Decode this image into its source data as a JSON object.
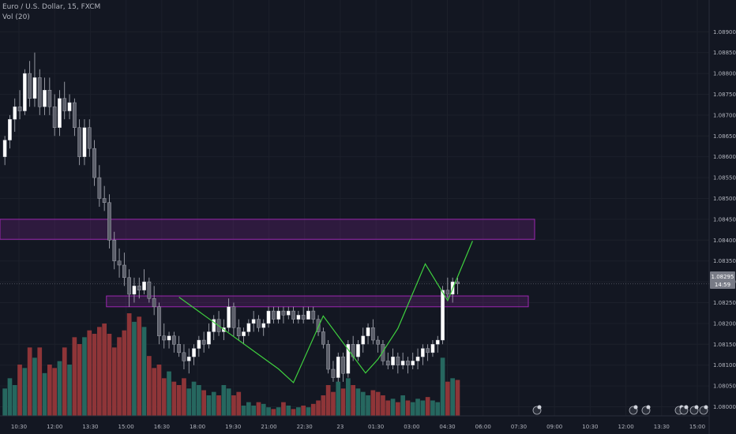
{
  "header": {
    "symbol": "Euro / U.S. Dollar, 15, FXCM",
    "indicator": "Vol (20)"
  },
  "price_label": {
    "price": "1.08295",
    "countdown": "14:59"
  },
  "colors": {
    "background": "#131722",
    "grid": "#1c202b",
    "candle_up": "#ffffff",
    "candle_down": "#5d606b",
    "wick": "#b2b5be",
    "volume_up": "#26675f",
    "volume_down": "#8e3538",
    "zone": "#9c27b0",
    "zigzag": "#3fd13f",
    "axis_text": "#b2b5be",
    "price_tag": "#787b86"
  },
  "chart_data": {
    "type": "candlestick",
    "title": "Euro / U.S. Dollar, 15, FXCM",
    "ylim": [
      1.07965,
      1.08963
    ],
    "y_ticks": [
      "1.08900",
      "1.08850",
      "1.08800",
      "1.08750",
      "1.08700",
      "1.08650",
      "1.08600",
      "1.08550",
      "1.08500",
      "1.08450",
      "1.08400",
      "1.08350",
      "1.08300",
      "1.08250",
      "1.08200",
      "1.08150",
      "1.08100",
      "1.08050",
      "1.08000"
    ],
    "x_ticks": [
      "10:30",
      "12:00",
      "13:30",
      "15:00",
      "16:30",
      "18:00",
      "19:30",
      "21:00",
      "22:30",
      "23",
      "01:30",
      "03:00",
      "04:30",
      "06:00",
      "07:30",
      "09:00",
      "10:30",
      "12:00",
      "13:30",
      "15:00"
    ],
    "candles": [
      [
        1.086,
        1.0865,
        1.0858,
        1.0864
      ],
      [
        1.0864,
        1.087,
        1.0862,
        1.0869
      ],
      [
        1.0869,
        1.0874,
        1.0866,
        1.0872
      ],
      [
        1.0872,
        1.0876,
        1.0869,
        1.0871
      ],
      [
        1.0871,
        1.0881,
        1.087,
        1.088
      ],
      [
        1.088,
        1.0883,
        1.0872,
        1.0874
      ],
      [
        1.0874,
        1.0885,
        1.0872,
        1.0879
      ],
      [
        1.0879,
        1.0881,
        1.087,
        1.0872
      ],
      [
        1.0872,
        1.0879,
        1.087,
        1.0876
      ],
      [
        1.0876,
        1.0879,
        1.087,
        1.0872
      ],
      [
        1.0872,
        1.0875,
        1.0865,
        1.0867
      ],
      [
        1.0867,
        1.0876,
        1.0865,
        1.0874
      ],
      [
        1.0874,
        1.0878,
        1.0869,
        1.0871
      ],
      [
        1.0871,
        1.0875,
        1.0869,
        1.0873
      ],
      [
        1.0873,
        1.0874,
        1.0865,
        1.0867
      ],
      [
        1.0867,
        1.0869,
        1.0858,
        1.086
      ],
      [
        1.086,
        1.0869,
        1.0858,
        1.0867
      ],
      [
        1.0867,
        1.0869,
        1.086,
        1.0862
      ],
      [
        1.0862,
        1.0864,
        1.0853,
        1.0855
      ],
      [
        1.0855,
        1.0858,
        1.0848,
        1.085
      ],
      [
        1.085,
        1.0853,
        1.0847,
        1.0849
      ],
      [
        1.0849,
        1.0851,
        1.0838,
        1.084
      ],
      [
        1.084,
        1.0842,
        1.0833,
        1.0835
      ],
      [
        1.0835,
        1.0838,
        1.0831,
        1.0834
      ],
      [
        1.0834,
        1.0837,
        1.0829,
        1.0831
      ],
      [
        1.0831,
        1.0833,
        1.0824,
        1.0827
      ],
      [
        1.0827,
        1.0831,
        1.0825,
        1.0829
      ],
      [
        1.0829,
        1.0831,
        1.0826,
        1.0828
      ],
      [
        1.0828,
        1.0833,
        1.0827,
        1.083
      ],
      [
        1.083,
        1.0831,
        1.0825,
        1.0826
      ],
      [
        1.0826,
        1.0829,
        1.0822,
        1.0824
      ],
      [
        1.0824,
        1.0825,
        1.0815,
        1.0817
      ],
      [
        1.0817,
        1.082,
        1.0814,
        1.0816
      ],
      [
        1.0816,
        1.0818,
        1.0814,
        1.0817
      ],
      [
        1.0817,
        1.0818,
        1.0813,
        1.0815
      ],
      [
        1.0815,
        1.0817,
        1.0812,
        1.0813
      ],
      [
        1.0813,
        1.0815,
        1.0809,
        1.0811
      ],
      [
        1.0811,
        1.0814,
        1.0808,
        1.0812
      ],
      [
        1.0812,
        1.0815,
        1.081,
        1.0814
      ],
      [
        1.0814,
        1.0817,
        1.0812,
        1.0816
      ],
      [
        1.0816,
        1.0818,
        1.0813,
        1.0815
      ],
      [
        1.0815,
        1.082,
        1.0814,
        1.0818
      ],
      [
        1.0818,
        1.0822,
        1.0816,
        1.0821
      ],
      [
        1.0821,
        1.0823,
        1.0817,
        1.0818
      ],
      [
        1.0818,
        1.0821,
        1.0816,
        1.0819
      ],
      [
        1.0819,
        1.0826,
        1.0818,
        1.0824
      ],
      [
        1.0824,
        1.0825,
        1.0817,
        1.0819
      ],
      [
        1.0819,
        1.0821,
        1.0816,
        1.0817
      ],
      [
        1.0817,
        1.0819,
        1.0815,
        1.0818
      ],
      [
        1.0818,
        1.0821,
        1.0817,
        1.082
      ],
      [
        1.082,
        1.0823,
        1.0818,
        1.0821
      ],
      [
        1.0821,
        1.0822,
        1.0818,
        1.0819
      ],
      [
        1.0819,
        1.0821,
        1.0817,
        1.082
      ],
      [
        1.082,
        1.0824,
        1.0819,
        1.0823
      ],
      [
        1.0823,
        1.0824,
        1.082,
        1.0821
      ],
      [
        1.0821,
        1.0824,
        1.082,
        1.0823
      ],
      [
        1.0823,
        1.0824,
        1.082,
        1.0822
      ],
      [
        1.0822,
        1.0824,
        1.0821,
        1.0823
      ],
      [
        1.0823,
        1.0824,
        1.082,
        1.0821
      ],
      [
        1.0821,
        1.0823,
        1.082,
        1.0822
      ],
      [
        1.0822,
        1.0824,
        1.082,
        1.0821
      ],
      [
        1.0821,
        1.0824,
        1.0821,
        1.0823
      ],
      [
        1.0823,
        1.0824,
        1.082,
        1.0821
      ],
      [
        1.0821,
        1.0822,
        1.0817,
        1.0818
      ],
      [
        1.0818,
        1.0819,
        1.0814,
        1.0815
      ],
      [
        1.0815,
        1.0816,
        1.0808,
        1.0809
      ],
      [
        1.0809,
        1.0811,
        1.0806,
        1.0807
      ],
      [
        1.0807,
        1.0813,
        1.0806,
        1.0812
      ],
      [
        1.0812,
        1.0813,
        1.0806,
        1.0808
      ],
      [
        1.0808,
        1.0816,
        1.0807,
        1.0815
      ],
      [
        1.0815,
        1.0817,
        1.0811,
        1.0812
      ],
      [
        1.0812,
        1.0816,
        1.0811,
        1.0815
      ],
      [
        1.0815,
        1.0819,
        1.0813,
        1.0817
      ],
      [
        1.0817,
        1.082,
        1.0815,
        1.0819
      ],
      [
        1.0819,
        1.0821,
        1.0815,
        1.0816
      ],
      [
        1.0816,
        1.0817,
        1.0813,
        1.0815
      ],
      [
        1.0815,
        1.0816,
        1.081,
        1.0811
      ],
      [
        1.0811,
        1.0813,
        1.0809,
        1.081
      ],
      [
        1.081,
        1.0814,
        1.0809,
        1.0812
      ],
      [
        1.0812,
        1.0813,
        1.0808,
        1.081
      ],
      [
        1.081,
        1.0813,
        1.0809,
        1.0811
      ],
      [
        1.0811,
        1.0812,
        1.0808,
        1.081
      ],
      [
        1.081,
        1.0813,
        1.0809,
        1.0811
      ],
      [
        1.0811,
        1.0814,
        1.0809,
        1.0812
      ],
      [
        1.0812,
        1.0815,
        1.081,
        1.0814
      ],
      [
        1.0814,
        1.0815,
        1.0811,
        1.0813
      ],
      [
        1.0813,
        1.0816,
        1.0812,
        1.0815
      ],
      [
        1.0815,
        1.0817,
        1.0813,
        1.0816
      ],
      [
        1.0816,
        1.0829,
        1.0815,
        1.0828
      ],
      [
        1.0828,
        1.0831,
        1.0826,
        1.0827
      ],
      [
        1.0827,
        1.0831,
        1.0825,
        1.083
      ],
      [
        1.083,
        1.0831,
        1.0827,
        1.08295
      ]
    ],
    "volumes": [
      0.16,
      0.22,
      0.18,
      0.3,
      0.28,
      0.4,
      0.34,
      0.4,
      0.25,
      0.3,
      0.28,
      0.32,
      0.4,
      0.3,
      0.46,
      0.42,
      0.46,
      0.5,
      0.48,
      0.52,
      0.54,
      0.48,
      0.4,
      0.46,
      0.5,
      0.6,
      0.55,
      0.58,
      0.52,
      0.35,
      0.28,
      0.3,
      0.22,
      0.26,
      0.2,
      0.18,
      0.22,
      0.16,
      0.2,
      0.18,
      0.15,
      0.12,
      0.14,
      0.12,
      0.18,
      0.16,
      0.12,
      0.14,
      0.06,
      0.08,
      0.06,
      0.08,
      0.07,
      0.05,
      0.04,
      0.05,
      0.08,
      0.06,
      0.04,
      0.05,
      0.06,
      0.05,
      0.07,
      0.09,
      0.12,
      0.18,
      0.14,
      0.2,
      0.16,
      0.22,
      0.18,
      0.16,
      0.14,
      0.12,
      0.15,
      0.14,
      0.12,
      0.09,
      0.1,
      0.08,
      0.12,
      0.09,
      0.08,
      0.1,
      0.09,
      0.11,
      0.09,
      0.08,
      0.34,
      0.2,
      0.22,
      0.21
    ],
    "zones": [
      {
        "from_bar": 0,
        "to_bar": "end",
        "top": 1.0845,
        "bottom": 1.08402
      },
      {
        "from_bar": 21,
        "to_bar": "end",
        "top": 1.08266,
        "bottom": 1.0824
      }
    ],
    "zigzag": [
      [
        35.5,
        1.08263
      ],
      [
        55.5,
        1.08091
      ],
      [
        58.5,
        1.08058
      ],
      [
        64.5,
        1.08218
      ],
      [
        73,
        1.08081
      ],
      [
        75.5,
        1.08114
      ],
      [
        79.5,
        1.08188
      ],
      [
        85,
        1.08343
      ],
      [
        89.5,
        1.08255
      ],
      [
        94.5,
        1.08398
      ]
    ],
    "last_price": 1.08295
  }
}
